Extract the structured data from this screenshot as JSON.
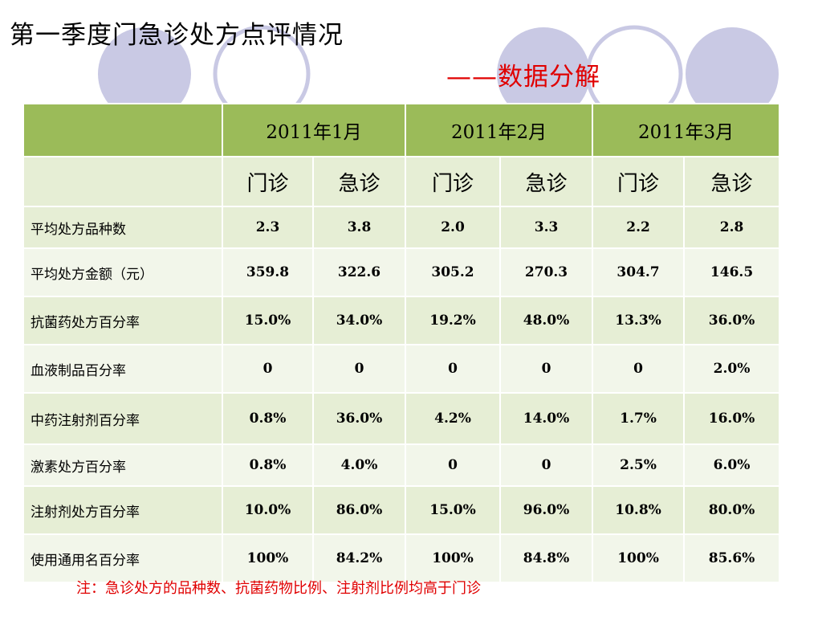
{
  "title": "第一季度门急诊处方点评情况",
  "subtitle": "——数据分解",
  "table": {
    "months": [
      "2011年1月",
      "2011年2月",
      "2011年3月"
    ],
    "types": [
      "门诊",
      "急诊",
      "门诊",
      "急诊",
      "门诊",
      "急诊"
    ],
    "rows": [
      {
        "label": "平均处方品种数",
        "values": [
          "2.3",
          "3.8",
          "2.0",
          "3.3",
          "2.2",
          "2.8"
        ]
      },
      {
        "label": "平均处方金额（元）",
        "values": [
          "359.8",
          "322.6",
          "305.2",
          "270.3",
          "304.7",
          "146.5"
        ]
      },
      {
        "label": "抗菌药处方百分率",
        "values": [
          "15.0%",
          "34.0%",
          "19.2%",
          "48.0%",
          "13.3%",
          "36.0%"
        ]
      },
      {
        "label": "血液制品百分率",
        "values": [
          "0",
          "0",
          "0",
          "0",
          "0",
          "2.0%"
        ]
      },
      {
        "label": "中药注射剂百分率",
        "values": [
          "0.8%",
          "36.0%",
          "4.2%",
          "14.0%",
          "1.7%",
          "16.0%"
        ]
      },
      {
        "label": "激素处方百分率",
        "values": [
          "0.8%",
          "4.0%",
          "0",
          "0",
          "2.5%",
          "6.0%"
        ]
      },
      {
        "label": "注射剂处方百分率",
        "values": [
          "10.0%",
          "86.0%",
          "15.0%",
          "96.0%",
          "10.8%",
          "80.0%"
        ]
      },
      {
        "label": "使用通用名百分率",
        "values": [
          "100%",
          "84.2%",
          "100%",
          "84.8%",
          "100%",
          "85.6%"
        ]
      }
    ]
  },
  "note": "注：急诊处方的品种数、抗菌药物比例、注射剂比例均高于门诊",
  "colors": {
    "header_green": "#9bbb59",
    "row_light": "#e6eed5",
    "row_lighter": "#f2f6ea",
    "accent_red": "#e00000",
    "decor_circle": "#c9c9e4"
  }
}
